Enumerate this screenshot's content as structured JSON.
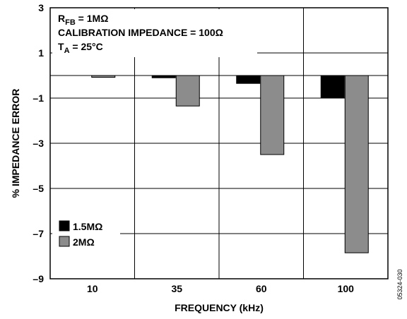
{
  "chart_data": {
    "type": "bar",
    "categories": [
      "10",
      "35",
      "60",
      "100"
    ],
    "series": [
      {
        "name": "1.5MΩ",
        "color": "#000000",
        "values": [
          0.0,
          -0.1,
          -0.35,
          -1.0
        ]
      },
      {
        "name": "2MΩ",
        "color": "#8c8c8c",
        "values": [
          -0.08,
          -1.35,
          -3.5,
          -7.85
        ]
      }
    ],
    "xlabel": "FREQUENCY (kHz)",
    "ylabel": "% IMPEDANCE ERROR",
    "ylim": [
      -9,
      3
    ],
    "yticks": [
      "3",
      "1",
      "–1",
      "–3",
      "–5",
      "–7",
      "–9"
    ],
    "ytick_values": [
      3,
      1,
      -1,
      -3,
      -5,
      -7,
      -9
    ],
    "grid": true,
    "legend_position": "bottom-left",
    "annotations": {
      "line1_main": "R",
      "line1_sub": "FB",
      "line1_rest": " = 1MΩ",
      "line2": "CALIBRATION IMPEDANCE = 100Ω",
      "line3_main": "T",
      "line3_sub": "A",
      "line3_rest": " = 25°C"
    },
    "figure_code": "05324-030"
  }
}
